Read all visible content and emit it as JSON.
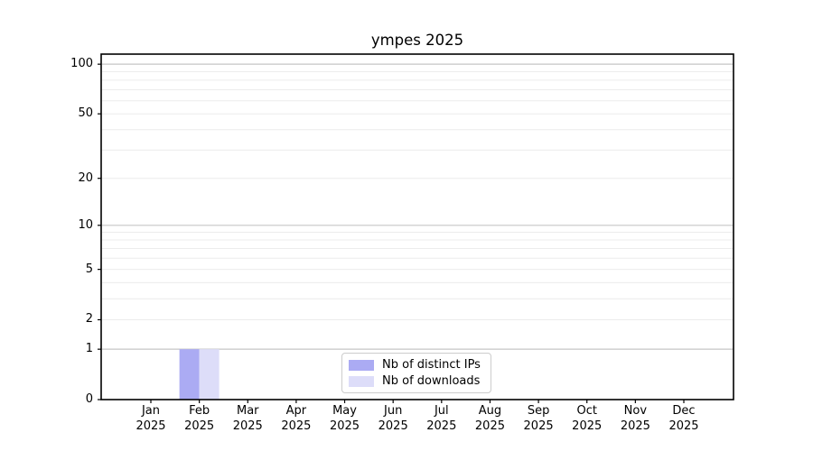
{
  "chart_data": {
    "type": "bar",
    "title": "ympes 2025",
    "categories": [
      "Jan",
      "Feb",
      "Mar",
      "Apr",
      "May",
      "Jun",
      "Jul",
      "Aug",
      "Sep",
      "Oct",
      "Nov",
      "Dec"
    ],
    "year_label": "2025",
    "series": [
      {
        "name": "Nb of distinct IPs",
        "color": "#ababf3",
        "values": [
          0,
          1,
          0,
          0,
          0,
          0,
          0,
          0,
          0,
          0,
          0,
          0
        ]
      },
      {
        "name": "Nb of downloads",
        "color": "#ddddf9",
        "values": [
          0,
          1,
          0,
          0,
          0,
          0,
          0,
          0,
          0,
          0,
          0,
          0
        ]
      }
    ],
    "xlabel": "",
    "ylabel": "",
    "y_scale": "log1p",
    "ylim": [
      0,
      115
    ],
    "y_tick_labels": [
      0,
      1,
      2,
      5,
      10,
      20,
      50,
      100
    ],
    "y_major_gridlines": [
      1,
      10,
      100
    ],
    "y_minor_gridlines": [
      2,
      3,
      4,
      5,
      6,
      7,
      8,
      9,
      20,
      30,
      40,
      50,
      60,
      70,
      80,
      90
    ],
    "grid": "horizontal",
    "legend": {
      "position": "lower center",
      "entries": [
        "Nb of distinct IPs",
        "Nb of downloads"
      ]
    },
    "style": {
      "background": "#ffffff",
      "axis_color": "#000000",
      "grid_major_color": "#c6c6c6",
      "grid_minor_color": "#ececec",
      "legend_border_color": "#cccccc",
      "text_color": "#000000"
    }
  }
}
